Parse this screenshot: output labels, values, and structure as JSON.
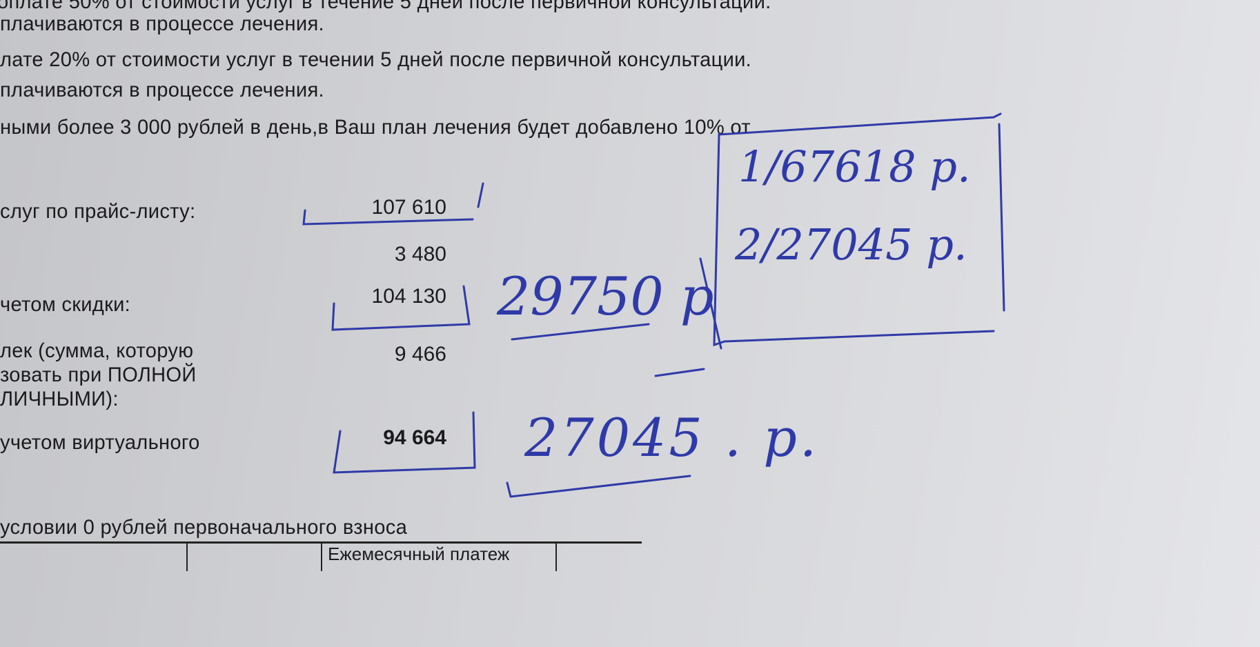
{
  "document": {
    "lines": [
      "оплате 50%  от  стоимости услуг в течение 5 дней после первичной консультации.",
      "плачиваются в процессе лечения.",
      "лате 20% от стоимости услуг в течении 5 дней после первичной консультации.",
      "плачиваются в процессе лечения.",
      "ными более 3 000 рублей в день,в Ваш план лечения будет добавлено 10% от"
    ],
    "rows": [
      {
        "label": "слуг по прайс-листу:",
        "value": "107 610"
      },
      {
        "label": "",
        "value": "3 480"
      },
      {
        "label": "четом скидки:",
        "value": "104 130"
      },
      {
        "label_lines": [
          "лек  (сумма,  которую",
          "зовать при ПОЛНОЙ",
          "ЛИЧНЫМИ):"
        ],
        "value": "9 466"
      },
      {
        "label": "учетом  виртуального",
        "value": "94 664"
      }
    ],
    "footer_line": "условии  0 рублей первоначального взноса",
    "table_header": [
      "",
      "",
      "Ежемесячный платеж"
    ]
  },
  "handwriting": {
    "box_line_1": "1/67618 р.",
    "box_line_2": "2/27045 р.",
    "note_1": "29750 р",
    "note_2": "27045 . р.",
    "ink_color": "#2f3aa8"
  }
}
